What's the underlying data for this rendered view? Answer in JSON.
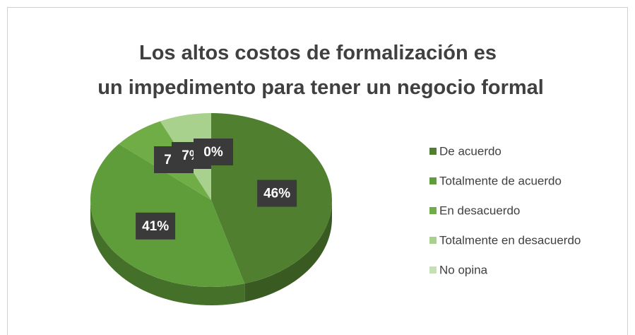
{
  "chart_data": {
    "type": "pie",
    "title": "Los altos costos de formalización es un impedimento para tener un negocio formal",
    "categories": [
      "De acuerdo",
      "Totalmente de acuerdo",
      "En desacuerdo",
      "Totalmente en desacuerdo",
      "No opina"
    ],
    "values": [
      46,
      41,
      7,
      7,
      0
    ],
    "value_labels": [
      "46%",
      "41%",
      "7%",
      "7%",
      "0%"
    ],
    "colors": [
      "#4f7f2f",
      "#5f9c3a",
      "#70ad47",
      "#a9d18e",
      "#c5e0b4"
    ],
    "legend": "right"
  }
}
